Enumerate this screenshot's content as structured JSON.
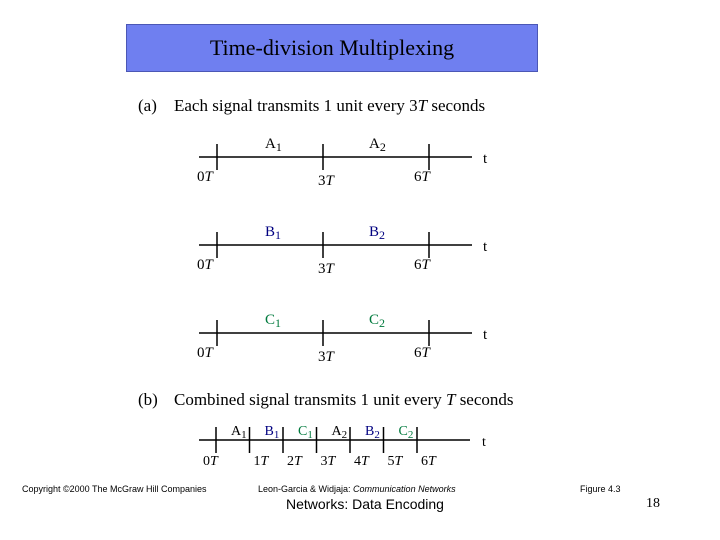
{
  "title": "Time-division Multiplexing",
  "section_a": {
    "tag": "(a)",
    "heading_pre": "Each signal transmits 1 unit every 3",
    "heading_T": "T",
    "heading_post": " seconds"
  },
  "section_b": {
    "tag": "(b)",
    "heading_pre": "Combined signal transmits 1 unit every ",
    "heading_T": "T",
    "heading_post": " seconds"
  },
  "timeline_a": {
    "axis_label": "t",
    "ticks": [
      {
        "num": "0",
        "unit": "T"
      },
      {
        "num": "3",
        "unit": "T"
      },
      {
        "num": "6",
        "unit": "T"
      }
    ],
    "signals": [
      {
        "letter": "A",
        "labels": [
          {
            "sub": "1"
          },
          {
            "sub": "2"
          }
        ]
      },
      {
        "letter": "B",
        "labels": [
          {
            "sub": "1"
          },
          {
            "sub": "2"
          }
        ]
      },
      {
        "letter": "C",
        "labels": [
          {
            "sub": "1"
          },
          {
            "sub": "2"
          }
        ]
      }
    ]
  },
  "timeline_b": {
    "axis_label": "t",
    "slots": [
      {
        "letter": "A",
        "sub": "1"
      },
      {
        "letter": "B",
        "sub": "1"
      },
      {
        "letter": "C",
        "sub": "1"
      },
      {
        "letter": "A",
        "sub": "2"
      },
      {
        "letter": "B",
        "sub": "2"
      },
      {
        "letter": "C",
        "sub": "2"
      }
    ],
    "ticks": [
      {
        "num": "0",
        "unit": "T"
      },
      {
        "num": "1",
        "unit": "T"
      },
      {
        "num": "2",
        "unit": "T"
      },
      {
        "num": "3",
        "unit": "T"
      },
      {
        "num": "4",
        "unit": "T"
      },
      {
        "num": "5",
        "unit": "T"
      },
      {
        "num": "6",
        "unit": "T"
      }
    ]
  },
  "colors": {
    "title_box": "#6f7ff0",
    "A": "#000000",
    "B": "#000080",
    "C": "#007a3d"
  },
  "footer": {
    "copyright": "Copyright ©2000 The McGraw Hill Companies",
    "citation_pre": "Leon-Garcia & Widjaja: ",
    "citation_title": "Communication Networks",
    "figure": "Figure 4.3",
    "topic": "Networks: Data Encoding",
    "page": "18"
  }
}
